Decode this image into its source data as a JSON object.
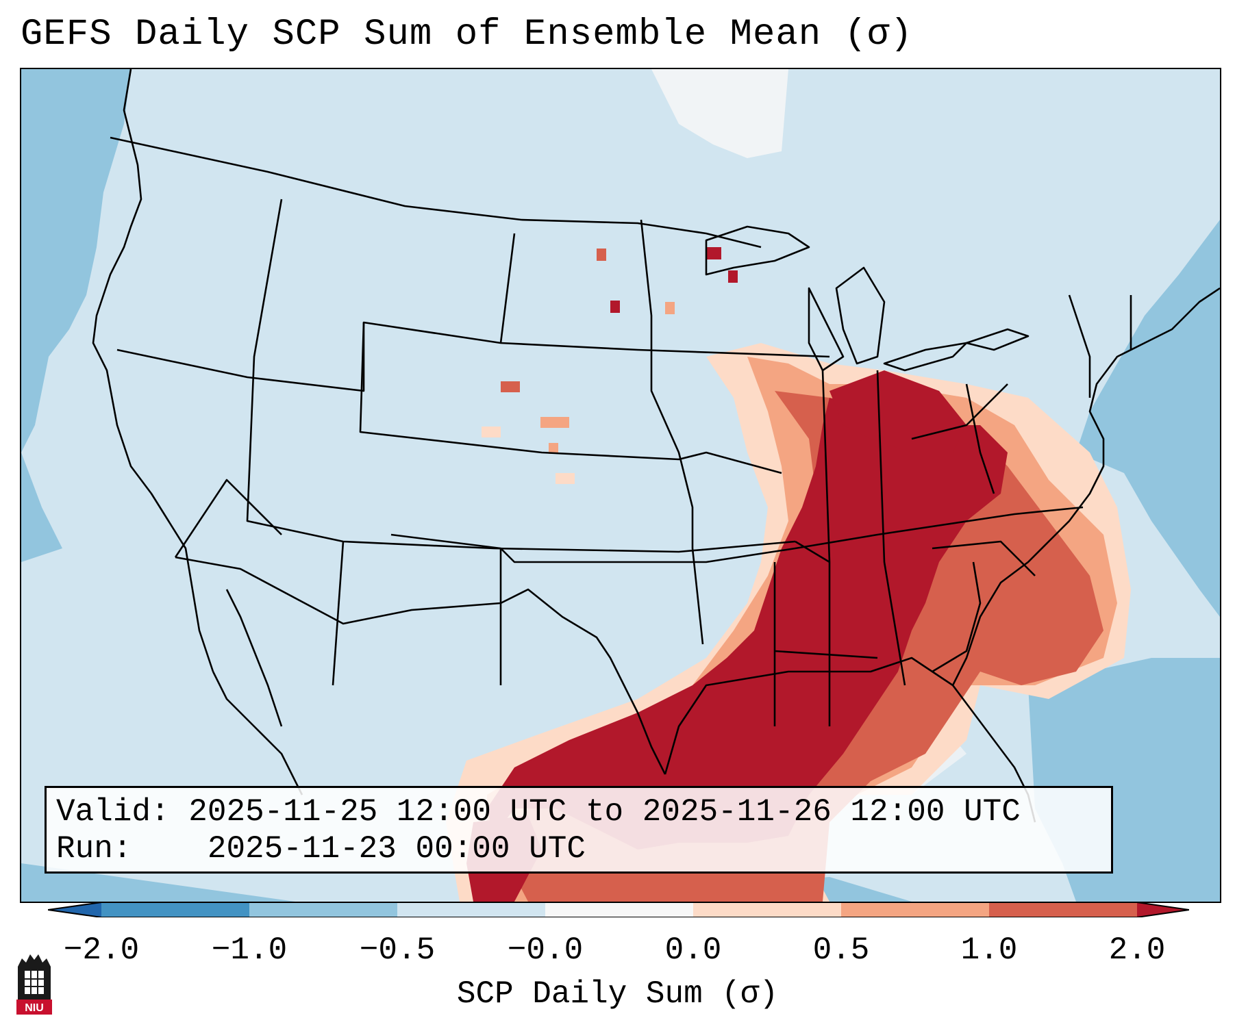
{
  "title": "GEFS Daily SCP Sum of Ensemble Mean (σ)",
  "info": {
    "valid_label": "Valid:",
    "valid_value": "2025-11-25 12:00 UTC to 2025-11-26 12:00 UTC",
    "run_label": "Run:",
    "run_value": "2025-11-23 00:00 UTC"
  },
  "colorbar": {
    "title": "SCP Daily Sum (σ)",
    "ticks": [
      "−2.0",
      "−1.0",
      "−0.5",
      "−0.0",
      "0.0",
      "0.5",
      "1.0",
      "2.0"
    ],
    "colors": [
      "#2166ac",
      "#4393c3",
      "#92c5de",
      "#d1e5f0",
      "#f7f7f7",
      "#fddbc7",
      "#f4a582",
      "#d6604d",
      "#b2182b"
    ]
  },
  "map": {
    "region": "Contiguous United States",
    "ocean_color": "#92c5de",
    "land_color": "#d1e5f0",
    "high_value_color": "#b2182b",
    "mid_high_color": "#d6604d",
    "low_high_color": "#f4a582",
    "slight_color": "#fddbc7"
  },
  "logo": {
    "text": "NIU"
  }
}
